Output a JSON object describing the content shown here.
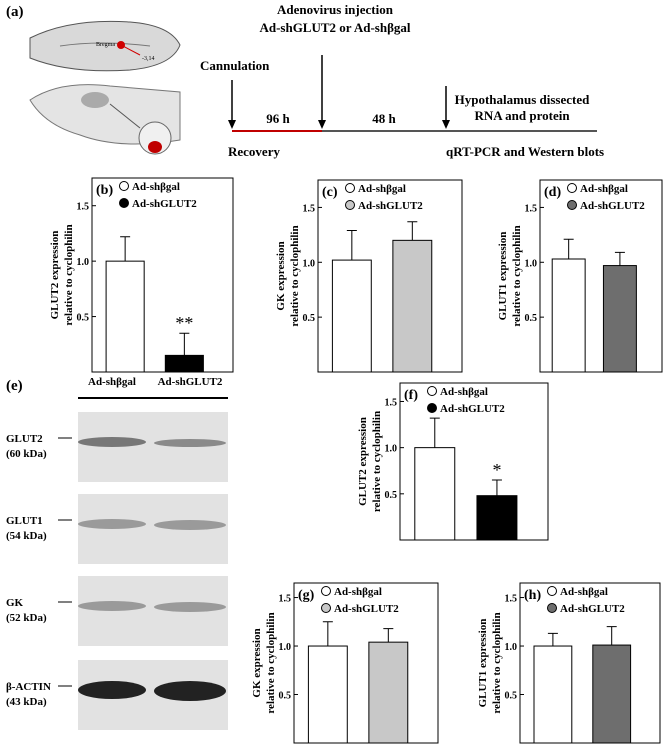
{
  "panel_a": {
    "label": "(a)",
    "skull_labels": [
      "Bregma",
      "-3,14"
    ],
    "injection": [
      "Adenovirus injection",
      "Ad-shGLUT2 or Ad-shβgal"
    ],
    "cannulation": "Cannulation",
    "interval_1": "96 h",
    "interval_2": "48 h",
    "dissection": [
      "Hypothalamus dissected",
      "RNA  and protein"
    ],
    "recovery": "Recovery",
    "analysis": "qRT-PCR and Western blots"
  },
  "panel_e": {
    "label": "(e)",
    "lanes": [
      "Ad-shβgal",
      "Ad-shGLUT2"
    ],
    "blots": [
      {
        "protein": "GLUT2",
        "size": "(60 kDa)"
      },
      {
        "protein": "GLUT1",
        "size": "(54 kDa)"
      },
      {
        "protein": "GK",
        "size": "(52 kDa)"
      },
      {
        "protein": "β-ACTIN",
        "size": "(43 kDa)"
      }
    ]
  },
  "chart_data": [
    {
      "type": "bar",
      "panel": "(b)",
      "ylabel": [
        "GLUT2 expression",
        "relative to cyclophilin"
      ],
      "ylim": [
        0,
        1.75
      ],
      "yticks": [
        0.5,
        {
          "value": 1,
          "label": "1.0"
        },
        1.5
      ],
      "series": [
        {
          "name": "Ad-shβgal",
          "color": "#ffffff",
          "values": [
            1.0
          ],
          "errors": [
            0.22
          ]
        },
        {
          "name": "Ad-shGLUT2",
          "color": "#000000",
          "values": [
            0.15
          ],
          "errors": [
            0.2
          ],
          "significance": "**"
        }
      ]
    },
    {
      "type": "bar",
      "panel": "(c)",
      "ylabel": [
        "GK expression",
        "relative to cyclophilin"
      ],
      "ylim": [
        0,
        1.75
      ],
      "yticks": [
        0.5,
        {
          "value": 1,
          "label": "1.0"
        },
        1.5
      ],
      "series": [
        {
          "name": "Ad-shβgal",
          "color": "#ffffff",
          "values": [
            1.02
          ],
          "errors": [
            0.27
          ]
        },
        {
          "name": "Ad-shGLUT2",
          "color": "#c8c8c8",
          "values": [
            1.2
          ],
          "errors": [
            0.17
          ]
        }
      ]
    },
    {
      "type": "bar",
      "panel": "(d)",
      "ylabel": [
        "GLUT1 expression",
        "relative to cyclophilin"
      ],
      "ylim": [
        0,
        1.75
      ],
      "yticks": [
        0.5,
        {
          "value": 1,
          "label": "1.0"
        },
        1.5
      ],
      "series": [
        {
          "name": "Ad-shβgal",
          "color": "#ffffff",
          "values": [
            1.03
          ],
          "errors": [
            0.18
          ]
        },
        {
          "name": "Ad-shGLUT2",
          "color": "#6e6e6e",
          "values": [
            0.97
          ],
          "errors": [
            0.12
          ]
        }
      ]
    },
    {
      "type": "bar",
      "panel": "(f)",
      "ylabel": [
        "GLUT2 expression",
        "relative to cyclophilin"
      ],
      "ylim": [
        0,
        1.7
      ],
      "yticks": [
        0.5,
        {
          "value": 1,
          "label": "1.0"
        },
        1.5
      ],
      "series": [
        {
          "name": "Ad-shβgal",
          "color": "#ffffff",
          "values": [
            1.0
          ],
          "errors": [
            0.32
          ]
        },
        {
          "name": "Ad-shGLUT2",
          "color": "#000000",
          "values": [
            0.48
          ],
          "errors": [
            0.17
          ],
          "significance": "*"
        }
      ]
    },
    {
      "type": "bar",
      "panel": "(g)",
      "ylabel": [
        "GK expression",
        "relative to cyclophilin"
      ],
      "ylim": [
        0,
        1.65
      ],
      "yticks": [
        0.5,
        {
          "value": 1,
          "label": "1.0"
        },
        1.5
      ],
      "series": [
        {
          "name": "Ad-shβgal",
          "color": "#ffffff",
          "values": [
            1.0
          ],
          "errors": [
            0.25
          ]
        },
        {
          "name": "Ad-shGLUT2",
          "color": "#c8c8c8",
          "values": [
            1.04
          ],
          "errors": [
            0.14
          ]
        }
      ]
    },
    {
      "type": "bar",
      "panel": "(h)",
      "ylabel": [
        "GLUT1 expression",
        "relative to cyclophilin"
      ],
      "ylim": [
        0,
        1.65
      ],
      "yticks": [
        0.5,
        {
          "value": 1,
          "label": "1.0"
        },
        1.5
      ],
      "series": [
        {
          "name": "Ad-shβgal",
          "color": "#ffffff",
          "values": [
            1.0
          ],
          "errors": [
            0.13
          ]
        },
        {
          "name": "Ad-shGLUT2",
          "color": "#6e6e6e",
          "values": [
            1.01
          ],
          "errors": [
            0.19
          ]
        }
      ]
    }
  ]
}
